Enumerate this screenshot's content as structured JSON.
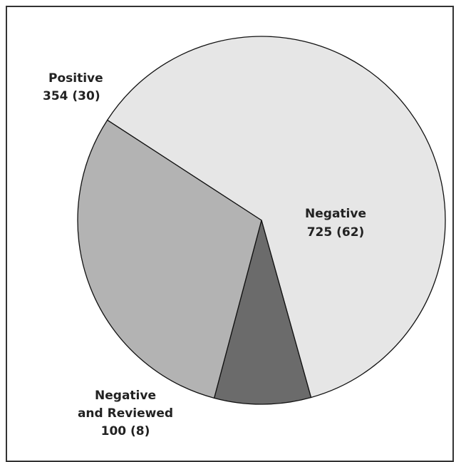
{
  "chart_data": {
    "type": "pie",
    "slices": [
      {
        "key": "negative",
        "label": "Negative",
        "value_text": "725 (62)",
        "value": 725,
        "percent": 62,
        "color": "#e6e6e6"
      },
      {
        "key": "negative_reviewed",
        "label": "Negative and Reviewed",
        "label_lines": [
          "Negative",
          "and Reviewed"
        ],
        "value_text": "100 (8)",
        "value": 100,
        "percent": 8,
        "color": "#6b6b6b"
      },
      {
        "key": "positive",
        "label": "Positive",
        "value_text": "354 (30)",
        "value": 354,
        "percent": 30,
        "color": "#b3b3b3"
      }
    ],
    "legend": "none",
    "stroke_color": "#111111",
    "frame_color": "#333333"
  }
}
